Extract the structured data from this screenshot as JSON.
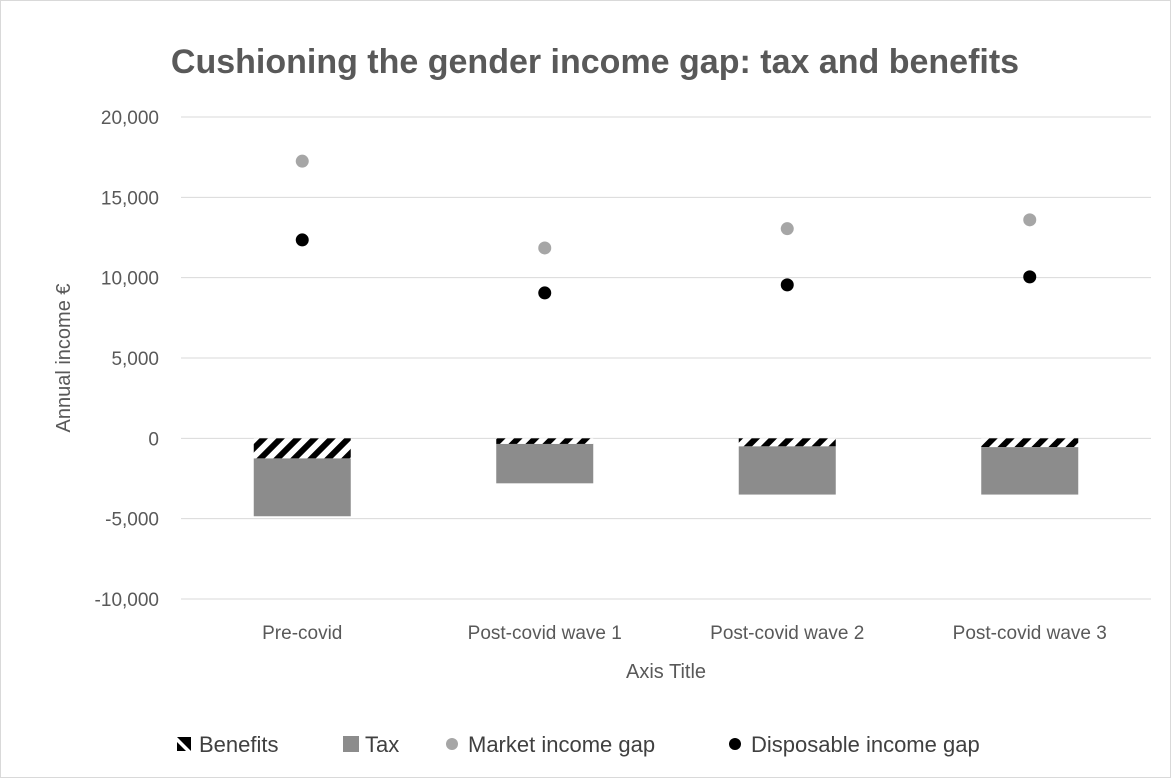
{
  "chart_data": {
    "type": "bar",
    "title": "Cushioning the gender income gap: tax and benefits",
    "xlabel": "Axis Title",
    "ylabel": "Annual income  €",
    "ylim": [
      -10000,
      20000
    ],
    "yticks": [
      20000,
      15000,
      10000,
      5000,
      0,
      -5000,
      -10000
    ],
    "ytick_labels": [
      "20,000",
      "15,000",
      "10,000",
      "5,000",
      "0",
      "-5,000",
      "-10,000"
    ],
    "categories": [
      "Pre-covid",
      "Post-covid wave 1",
      "Post-covid wave 2",
      "Post-covid wave 3"
    ],
    "grid": true,
    "legend_position": "bottom",
    "series": [
      {
        "name": "Benefits",
        "kind": "stacked-bar",
        "pattern": "diagonal-stripes",
        "color": "#000000",
        "values": [
          -1250,
          -350,
          -500,
          -550
        ]
      },
      {
        "name": "Tax",
        "kind": "stacked-bar",
        "color": "#8c8c8c",
        "values": [
          -3600,
          -2450,
          -3000,
          -2950
        ]
      },
      {
        "name": "Market income gap",
        "kind": "marker",
        "color": "#a6a6a6",
        "values": [
          17250,
          11850,
          13050,
          13600
        ]
      },
      {
        "name": "Disposable income gap",
        "kind": "marker",
        "color": "#000000",
        "values": [
          12350,
          9050,
          9550,
          10050
        ]
      }
    ]
  }
}
